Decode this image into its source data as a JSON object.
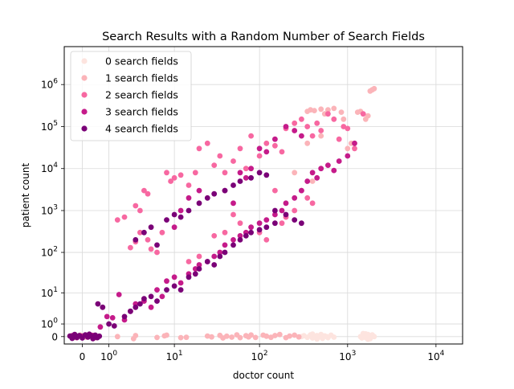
{
  "chart_data": {
    "type": "scatter",
    "title": "Search Results with a Random Number of Search Fields",
    "xlabel": "doctor count",
    "ylabel": "patient count",
    "x_scale": "symlog",
    "y_scale": "symlog",
    "xlim": [
      -0.6,
      20000
    ],
    "ylim": [
      -0.5,
      8000000
    ],
    "grid": true,
    "legend": "top-left",
    "x_ticks": [
      {
        "value": 0,
        "label": "0"
      },
      {
        "value": 1,
        "base": "10",
        "exp": "0"
      },
      {
        "value": 10,
        "base": "10",
        "exp": "1"
      },
      {
        "value": 100,
        "base": "10",
        "exp": "2"
      },
      {
        "value": 1000,
        "base": "10",
        "exp": "3"
      },
      {
        "value": 10000,
        "base": "10",
        "exp": "4"
      }
    ],
    "y_ticks": [
      {
        "value": 0,
        "label": "0"
      },
      {
        "value": 1,
        "base": "10",
        "exp": "0"
      },
      {
        "value": 10,
        "base": "10",
        "exp": "1"
      },
      {
        "value": 100,
        "base": "10",
        "exp": "2"
      },
      {
        "value": 1000,
        "base": "10",
        "exp": "3"
      },
      {
        "value": 10000,
        "base": "10",
        "exp": "4"
      },
      {
        "value": 100000,
        "base": "10",
        "exp": "5"
      },
      {
        "value": 1000000,
        "base": "10",
        "exp": "6"
      }
    ],
    "series": [
      {
        "name": "0 search fields",
        "color": "#fde4df",
        "points": [
          [
            300,
            0
          ],
          [
            320,
            0.05
          ],
          [
            350,
            -0.04
          ],
          [
            380,
            0.1
          ],
          [
            400,
            -0.08
          ],
          [
            420,
            0.03
          ],
          [
            450,
            0.06
          ],
          [
            480,
            -0.02
          ],
          [
            500,
            0.12
          ],
          [
            520,
            -0.1
          ],
          [
            550,
            0.04
          ],
          [
            580,
            0
          ],
          [
            600,
            -0.06
          ],
          [
            650,
            0.08
          ],
          [
            700,
            -0.03
          ],
          [
            400,
            0.15
          ],
          [
            450,
            -0.14
          ],
          [
            1400,
            0
          ],
          [
            1500,
            0.08
          ],
          [
            1600,
            -0.06
          ],
          [
            1700,
            0.12
          ],
          [
            1800,
            -0.12
          ],
          [
            1550,
            0.02
          ],
          [
            1650,
            -0.02
          ],
          [
            1750,
            0.05
          ],
          [
            1450,
            -0.08
          ],
          [
            1600,
            0.16
          ],
          [
            1700,
            -0.16
          ],
          [
            1500,
            0.18
          ],
          [
            2000,
            0
          ],
          [
            1900,
            0.1
          ]
        ]
      },
      {
        "name": "1 search fields",
        "color": "#fbb4b9",
        "points": [
          [
            -0.35,
            0.02
          ],
          [
            -0.2,
            -0.05
          ],
          [
            -0.05,
            0.08
          ],
          [
            0.1,
            -0.02
          ],
          [
            0.25,
            0.05
          ],
          [
            0.4,
            -0.06
          ],
          [
            1.5,
            0
          ],
          [
            2.8,
            -0.12
          ],
          [
            3,
            0.06
          ],
          [
            6,
            -0.05
          ],
          [
            7.5,
            0.04
          ],
          [
            8,
            0.08
          ],
          [
            12,
            -0.06
          ],
          [
            14,
            -0.04
          ],
          [
            25,
            0.03
          ],
          [
            28,
            -0.02
          ],
          [
            35,
            0.07
          ],
          [
            38,
            -0.08
          ],
          [
            42,
            0.02
          ],
          [
            48,
            -0.03
          ],
          [
            55,
            0.1
          ],
          [
            60,
            -0.06
          ],
          [
            70,
            0.05
          ],
          [
            75,
            -0.02
          ],
          [
            80,
            0.09
          ],
          [
            90,
            -0.05
          ],
          [
            110,
            0.08
          ],
          [
            120,
            0.02
          ],
          [
            135,
            -0.04
          ],
          [
            150,
            0.06
          ],
          [
            170,
            0.12
          ],
          [
            200,
            -0.06
          ],
          [
            220,
            0.03
          ],
          [
            250,
            0.08
          ],
          [
            280,
            -0.02
          ],
          [
            350,
            230000
          ],
          [
            380,
            250000
          ],
          [
            420,
            240000
          ],
          [
            500,
            260000
          ],
          [
            550,
            200000
          ],
          [
            600,
            250000
          ],
          [
            700,
            270000
          ],
          [
            850,
            220000
          ],
          [
            1300,
            220000
          ],
          [
            1400,
            230000
          ],
          [
            1600,
            150000
          ],
          [
            1700,
            180000
          ],
          [
            1800,
            700000
          ],
          [
            1900,
            750000
          ],
          [
            2000,
            800000
          ],
          [
            1100,
            40000
          ],
          [
            1000,
            30000
          ],
          [
            900,
            150000
          ],
          [
            500,
            60000
          ],
          [
            350,
            40000
          ],
          [
            250,
            8000
          ],
          [
            400,
            5000
          ]
        ]
      },
      {
        "name": "2 search fields",
        "color": "#f768a1",
        "points": [
          [
            1.5,
            600
          ],
          [
            2,
            700
          ],
          [
            3,
            1300
          ],
          [
            3.5,
            1000
          ],
          [
            4,
            3000
          ],
          [
            4.5,
            2500
          ],
          [
            2.5,
            130
          ],
          [
            3,
            180
          ],
          [
            3.5,
            300
          ],
          [
            4.5,
            200
          ],
          [
            5,
            120
          ],
          [
            6,
            100
          ],
          [
            7,
            300
          ],
          [
            8,
            8000
          ],
          [
            9,
            5000
          ],
          [
            10,
            6000
          ],
          [
            12,
            7000
          ],
          [
            15,
            4000
          ],
          [
            18,
            8000
          ],
          [
            20,
            30000
          ],
          [
            25,
            40000
          ],
          [
            30,
            12000
          ],
          [
            35,
            20000
          ],
          [
            40,
            8000
          ],
          [
            50,
            15000
          ],
          [
            60,
            30000
          ],
          [
            70,
            10000
          ],
          [
            80,
            60000
          ],
          [
            100,
            20000
          ],
          [
            120,
            40000
          ],
          [
            150,
            35000
          ],
          [
            180,
            25000
          ],
          [
            200,
            90000
          ],
          [
            250,
            120000
          ],
          [
            300,
            150000
          ],
          [
            350,
            100000
          ],
          [
            400,
            60000
          ],
          [
            450,
            120000
          ],
          [
            500,
            80000
          ],
          [
            600,
            200000
          ],
          [
            700,
            150000
          ],
          [
            800,
            50000
          ],
          [
            900,
            100000
          ],
          [
            1000,
            90000
          ],
          [
            1200,
            30000
          ],
          [
            1500,
            200000
          ],
          [
            300,
            3000
          ],
          [
            350,
            2000
          ],
          [
            400,
            1500
          ],
          [
            250,
            1000
          ],
          [
            200,
            700
          ],
          [
            180,
            500
          ],
          [
            150,
            3000
          ],
          [
            120,
            200
          ],
          [
            100,
            300
          ],
          [
            60,
            500
          ],
          [
            50,
            800
          ],
          [
            40,
            300
          ],
          [
            30,
            250
          ],
          [
            20,
            80
          ],
          [
            15,
            60
          ]
        ]
      },
      {
        "name": "3 search fields",
        "color": "#c51b8a",
        "points": [
          [
            -0.3,
            0.05
          ],
          [
            -0.15,
            -0.06
          ],
          [
            0,
            0.02
          ],
          [
            0.15,
            -0.03
          ],
          [
            0.3,
            0.07
          ],
          [
            0.45,
            -0.05
          ],
          [
            0.6,
            0.7
          ],
          [
            0.9,
            2
          ],
          [
            1.2,
            1.8
          ],
          [
            1.6,
            9
          ],
          [
            2,
            1.5
          ],
          [
            2.5,
            3
          ],
          [
            3,
            5
          ],
          [
            4,
            6
          ],
          [
            5,
            4
          ],
          [
            6,
            12
          ],
          [
            7,
            8
          ],
          [
            8,
            20
          ],
          [
            10,
            25
          ],
          [
            12,
            18
          ],
          [
            15,
            30
          ],
          [
            18,
            40
          ],
          [
            20,
            50
          ],
          [
            25,
            60
          ],
          [
            30,
            80
          ],
          [
            35,
            100
          ],
          [
            40,
            150
          ],
          [
            50,
            200
          ],
          [
            60,
            250
          ],
          [
            70,
            300
          ],
          [
            80,
            400
          ],
          [
            100,
            500
          ],
          [
            120,
            600
          ],
          [
            150,
            800
          ],
          [
            180,
            1000
          ],
          [
            200,
            1500
          ],
          [
            250,
            2000
          ],
          [
            300,
            3000
          ],
          [
            350,
            5000
          ],
          [
            400,
            8000
          ],
          [
            450,
            6000
          ],
          [
            500,
            10000
          ],
          [
            600,
            12000
          ],
          [
            700,
            9000
          ],
          [
            800,
            15000
          ],
          [
            1000,
            20000
          ],
          [
            1200,
            40000
          ],
          [
            40,
            3000
          ],
          [
            50,
            1500
          ],
          [
            60,
            8000
          ],
          [
            70,
            6000
          ],
          [
            80,
            10000
          ],
          [
            100,
            30000
          ],
          [
            120,
            25000
          ],
          [
            150,
            50000
          ],
          [
            200,
            100000
          ],
          [
            250,
            80000
          ],
          [
            300,
            60000
          ],
          [
            10,
            400
          ],
          [
            12,
            1000
          ],
          [
            15,
            2000
          ],
          [
            20,
            3000
          ]
        ]
      },
      {
        "name": "4 search fields",
        "color": "#7a0177",
        "points": [
          [
            -0.38,
            0.03
          ],
          [
            -0.3,
            -0.1
          ],
          [
            -0.22,
            0.12
          ],
          [
            -0.15,
            -0.04
          ],
          [
            -0.08,
            0.06
          ],
          [
            0,
            -0.08
          ],
          [
            0.08,
            0.1
          ],
          [
            0.16,
            -0.02
          ],
          [
            0.24,
            0.04
          ],
          [
            0.32,
            -0.12
          ],
          [
            0.4,
            0.08
          ],
          [
            0.48,
            -0.06
          ],
          [
            0.56,
            0.02
          ],
          [
            -0.33,
            0.0
          ],
          [
            0.2,
            0.14
          ],
          [
            0.5,
            5
          ],
          [
            0.7,
            4
          ],
          [
            1,
            1
          ],
          [
            1.3,
            0.8
          ],
          [
            2,
            2
          ],
          [
            2.5,
            3
          ],
          [
            3,
            4
          ],
          [
            3.5,
            5
          ],
          [
            4,
            7
          ],
          [
            5,
            8
          ],
          [
            6,
            6
          ],
          [
            8,
            12
          ],
          [
            10,
            15
          ],
          [
            12,
            12
          ],
          [
            15,
            25
          ],
          [
            18,
            30
          ],
          [
            20,
            40
          ],
          [
            25,
            60
          ],
          [
            30,
            50
          ],
          [
            35,
            80
          ],
          [
            40,
            100
          ],
          [
            50,
            150
          ],
          [
            60,
            200
          ],
          [
            70,
            250
          ],
          [
            80,
            300
          ],
          [
            100,
            350
          ],
          [
            120,
            400
          ],
          [
            150,
            500
          ],
          [
            3,
            200
          ],
          [
            4,
            300
          ],
          [
            5,
            400
          ],
          [
            6,
            150
          ],
          [
            8,
            600
          ],
          [
            10,
            800
          ],
          [
            12,
            700
          ],
          [
            15,
            1000
          ],
          [
            20,
            1500
          ],
          [
            25,
            2000
          ],
          [
            30,
            2500
          ],
          [
            40,
            3000
          ],
          [
            50,
            4000
          ],
          [
            60,
            5000
          ],
          [
            80,
            6000
          ],
          [
            100,
            8000
          ],
          [
            120,
            7000
          ],
          [
            150,
            1000
          ],
          [
            200,
            800
          ],
          [
            250,
            600
          ],
          [
            300,
            500
          ]
        ]
      }
    ]
  }
}
